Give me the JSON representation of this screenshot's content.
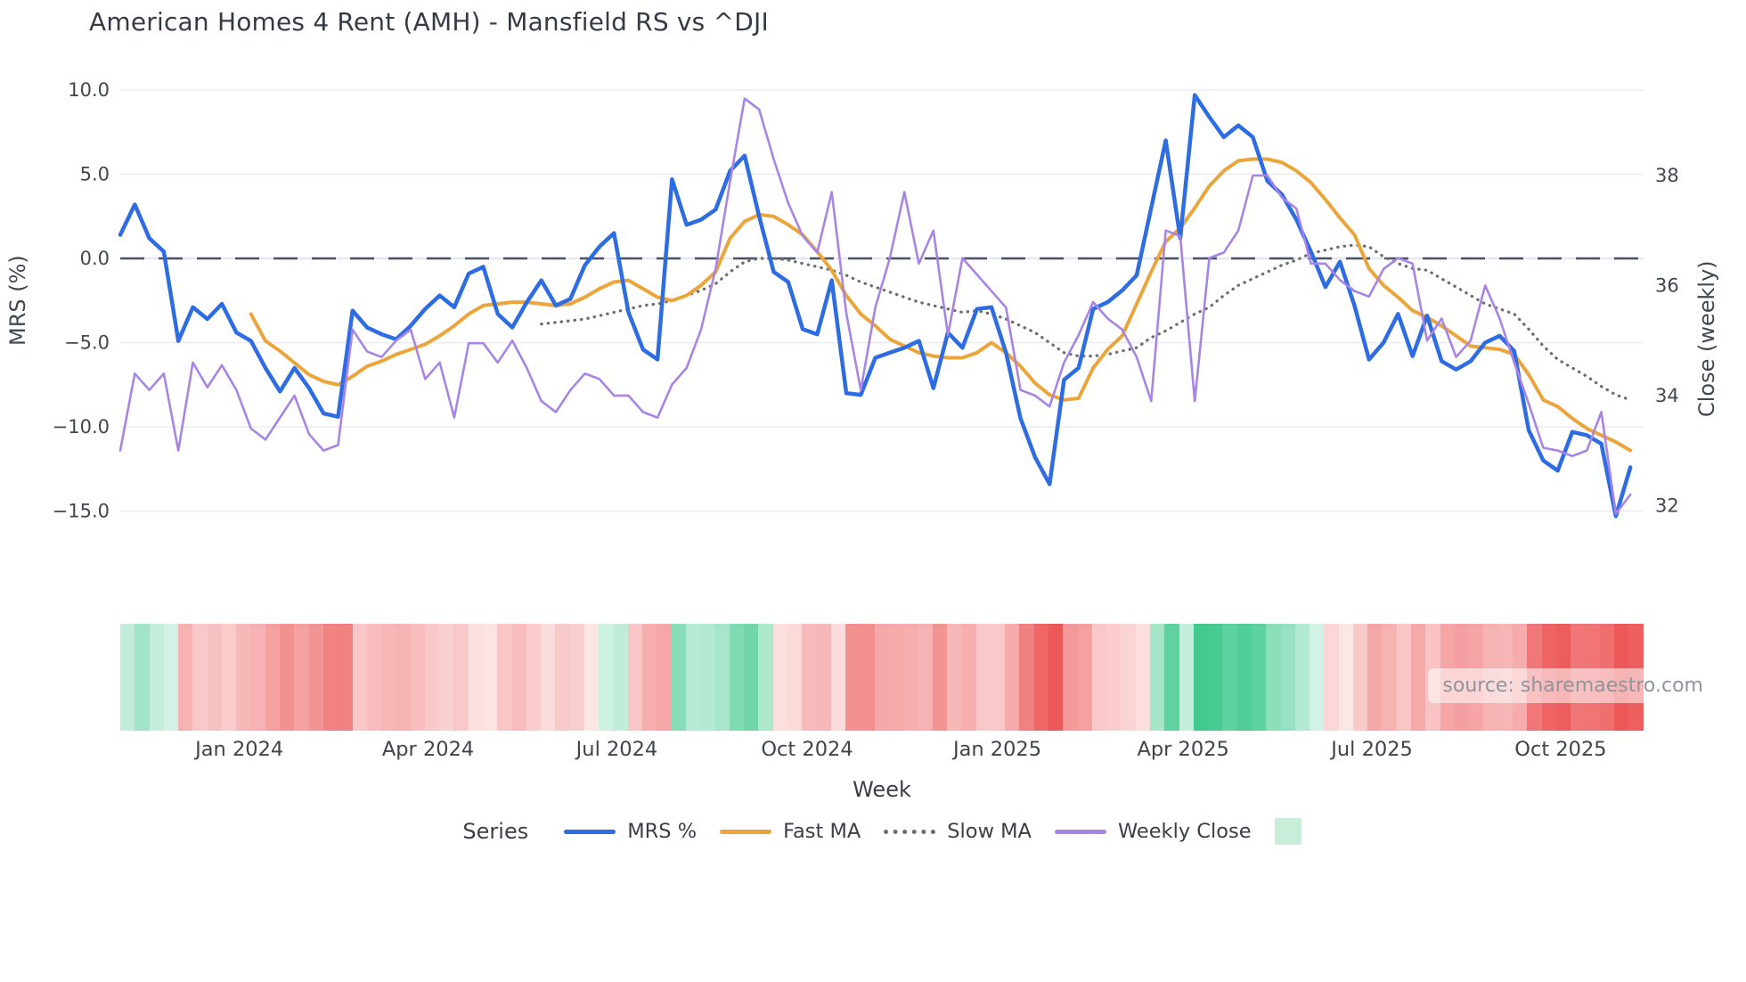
{
  "title": "American Homes 4 Rent (AMH) - Mansfield RS vs ^DJI",
  "watermark": "source: sharemaestro.com",
  "axes": {
    "left": {
      "title": "MRS (%)",
      "tick_labels": [
        "10.0",
        "5.0",
        "0.0",
        "−5.0",
        "−10.0",
        "−15.0"
      ],
      "tick_values": [
        10,
        5,
        0,
        -5,
        -10,
        -15
      ]
    },
    "right": {
      "title": "Close (weekly)",
      "tick_labels": [
        "38",
        "36",
        "34",
        "32"
      ],
      "tick_values": [
        38,
        36,
        34,
        32
      ]
    },
    "x": {
      "title": "Week",
      "ticks": [
        {
          "label": "Jan 2024",
          "week": 8.2
        },
        {
          "label": "Apr 2024",
          "week": 21.2
        },
        {
          "label": "Jul 2024",
          "week": 34.2
        },
        {
          "label": "Oct 2024",
          "week": 47.3
        },
        {
          "label": "Jan 2025",
          "week": 60.4
        },
        {
          "label": "Apr 2025",
          "week": 73.2
        },
        {
          "label": "Jul 2025",
          "week": 86.2
        },
        {
          "label": "Oct 2025",
          "week": 99.2
        }
      ]
    }
  },
  "legend": {
    "title": "Series",
    "items": [
      {
        "label": "MRS %",
        "color": "#2d6ce3",
        "style": "solid"
      },
      {
        "label": "Fast MA",
        "color": "#eca53b",
        "style": "solid"
      },
      {
        "label": "Slow MA",
        "color": "#6d6d6d",
        "style": "dotted"
      },
      {
        "label": "Weekly Close",
        "color": "#a884e4",
        "style": "solid"
      }
    ],
    "heat_swatch_color": "#c8eedb"
  },
  "colors": {
    "gridline": "#ebecf2",
    "zero_line_dash": "#4a5068",
    "zero_line_under": "#e6e7f3",
    "heat_green": "#41c98f",
    "heat_red": "#ed5858"
  },
  "chart_data": {
    "type": "line",
    "x_unit": "week_index",
    "n_weeks": 105,
    "xlabel": "Week",
    "ylabel_left": "MRS (%)",
    "ylabel_right": "Close (weekly)",
    "ylim_left": [
      -15,
      10
    ],
    "ylim_right_ticks": [
      32,
      38
    ],
    "zero_reference_line": 0,
    "grid": true,
    "legend_position": "bottom",
    "heatmap_strip_source": "MRS %",
    "series": [
      {
        "name": "MRS %",
        "axis": "left",
        "color": "#2d6ce3",
        "dash": "solid",
        "width": 4.5,
        "values": [
          1.4,
          3.2,
          1.2,
          0.4,
          -4.9,
          -2.9,
          -3.6,
          -2.7,
          -4.4,
          -4.9,
          -6.5,
          -7.9,
          -6.5,
          -7.7,
          -9.2,
          -9.4,
          -3.1,
          -4.1,
          -4.5,
          -4.8,
          -4.0,
          -3.0,
          -2.2,
          -2.9,
          -0.9,
          -0.5,
          -3.3,
          -4.1,
          -2.6,
          -1.3,
          -2.8,
          -2.4,
          -0.4,
          0.7,
          1.5,
          -3.2,
          -5.4,
          -6.0,
          4.7,
          2.0,
          2.3,
          2.9,
          5.2,
          6.1,
          2.5,
          -0.8,
          -1.4,
          -4.2,
          -4.5,
          -1.3,
          -8.0,
          -8.1,
          -5.9,
          -5.6,
          -5.3,
          -4.9,
          -7.7,
          -4.4,
          -5.3,
          -3.0,
          -2.9,
          -5.6,
          -9.5,
          -11.8,
          -13.4,
          -7.2,
          -6.5,
          -3.0,
          -2.6,
          -1.9,
          -1.0,
          3.0,
          7.0,
          1.2,
          9.7,
          8.4,
          7.2,
          7.9,
          7.2,
          4.6,
          3.8,
          2.3,
          0.4,
          -1.7,
          -0.2,
          -2.8,
          -6.0,
          -5.0,
          -3.3,
          -5.8,
          -3.4,
          -6.1,
          -6.6,
          -6.1,
          -5.0,
          -4.6,
          -5.5,
          -10.2,
          -12.0,
          -12.6,
          -10.3,
          -10.5,
          -11.0,
          -15.3,
          -12.4
        ]
      },
      {
        "name": "Fast MA",
        "axis": "left",
        "color": "#eca53b",
        "dash": "solid",
        "width": 4,
        "values": [
          null,
          null,
          null,
          null,
          null,
          null,
          null,
          null,
          null,
          -3.3,
          -4.9,
          -5.5,
          -6.2,
          -6.9,
          -7.3,
          -7.5,
          -7.0,
          -6.4,
          -6.1,
          -5.7,
          -5.4,
          -5.1,
          -4.6,
          -4.0,
          -3.3,
          -2.8,
          -2.7,
          -2.6,
          -2.6,
          -2.7,
          -2.8,
          -2.7,
          -2.3,
          -1.8,
          -1.4,
          -1.3,
          -1.8,
          -2.3,
          -2.5,
          -2.2,
          -1.6,
          -0.8,
          1.2,
          2.2,
          2.6,
          2.5,
          2.0,
          1.4,
          0.4,
          -0.7,
          -2.2,
          -3.3,
          -4.0,
          -4.8,
          -5.2,
          -5.6,
          -5.8,
          -5.9,
          -5.9,
          -5.6,
          -5.0,
          -5.6,
          -6.4,
          -7.4,
          -8.1,
          -8.4,
          -8.3,
          -6.5,
          -5.4,
          -4.6,
          -2.7,
          -0.8,
          1.0,
          1.8,
          3.0,
          4.3,
          5.2,
          5.8,
          5.9,
          5.9,
          5.7,
          5.2,
          4.5,
          3.5,
          2.4,
          1.4,
          -0.6,
          -1.6,
          -2.3,
          -3.1,
          -3.5,
          -4.0,
          -4.6,
          -5.2,
          -5.3,
          -5.4,
          -5.7,
          -6.9,
          -8.4,
          -8.8,
          -9.5,
          -10.1,
          -10.5,
          -10.9,
          -11.4
        ]
      },
      {
        "name": "Slow MA",
        "axis": "left",
        "color": "#6d6d6d",
        "dash": "dot",
        "width": 3.2,
        "values": [
          null,
          null,
          null,
          null,
          null,
          null,
          null,
          null,
          null,
          null,
          null,
          null,
          null,
          null,
          null,
          null,
          null,
          null,
          null,
          null,
          null,
          null,
          null,
          null,
          null,
          null,
          null,
          null,
          null,
          -3.9,
          -3.8,
          -3.7,
          -3.6,
          -3.4,
          -3.2,
          -3.0,
          -2.8,
          -2.7,
          -2.5,
          -2.2,
          -1.9,
          -1.5,
          -0.8,
          -0.2,
          0.0,
          0.0,
          -0.1,
          -0.3,
          -0.5,
          -0.7,
          -1.0,
          -1.4,
          -1.7,
          -2.0,
          -2.3,
          -2.6,
          -2.8,
          -3.0,
          -3.2,
          -3.1,
          -3.3,
          -3.6,
          -4.0,
          -4.4,
          -5.0,
          -5.6,
          -5.8,
          -5.8,
          -5.7,
          -5.5,
          -5.3,
          -4.7,
          -4.3,
          -3.8,
          -3.3,
          -2.9,
          -2.2,
          -1.6,
          -1.2,
          -0.8,
          -0.4,
          -0.1,
          0.3,
          0.5,
          0.7,
          0.8,
          0.7,
          0.1,
          -0.3,
          -0.6,
          -0.7,
          -1.2,
          -1.7,
          -2.2,
          -2.7,
          -3.0,
          -3.3,
          -4.2,
          -5.2,
          -6.0,
          -6.5,
          -7.0,
          -7.6,
          -8.1,
          -8.4
        ]
      },
      {
        "name": "Weekly Close",
        "axis": "right",
        "color": "#a884e4",
        "dash": "solid",
        "width": 2.6,
        "values": [
          33.0,
          34.4,
          34.1,
          34.4,
          33.0,
          34.6,
          34.15,
          34.55,
          34.1,
          33.4,
          33.2,
          33.6,
          34.0,
          33.3,
          33.0,
          33.1,
          35.2,
          34.8,
          34.7,
          35.0,
          35.2,
          34.3,
          34.6,
          33.6,
          34.95,
          34.95,
          34.6,
          35.0,
          34.5,
          33.9,
          33.7,
          34.1,
          34.4,
          34.3,
          34.0,
          34.0,
          33.7,
          33.6,
          34.2,
          34.5,
          35.2,
          36.3,
          37.9,
          39.4,
          39.2,
          38.3,
          37.5,
          36.9,
          36.6,
          37.7,
          35.5,
          34.1,
          35.6,
          36.5,
          37.7,
          36.4,
          37.0,
          35.1,
          36.5,
          36.2,
          35.9,
          35.6,
          34.1,
          34.0,
          33.8,
          34.6,
          35.1,
          35.7,
          35.4,
          35.2,
          34.7,
          33.9,
          37.0,
          36.9,
          33.9,
          36.5,
          36.6,
          37.0,
          38.0,
          38.0,
          37.6,
          37.4,
          36.4,
          36.4,
          36.1,
          35.9,
          35.8,
          36.3,
          36.5,
          36.4,
          35.0,
          35.4,
          34.7,
          35.0,
          36.0,
          35.4,
          34.6,
          33.85,
          33.05,
          33.0,
          32.9,
          33.0,
          33.7,
          31.85,
          32.2
        ]
      }
    ]
  }
}
